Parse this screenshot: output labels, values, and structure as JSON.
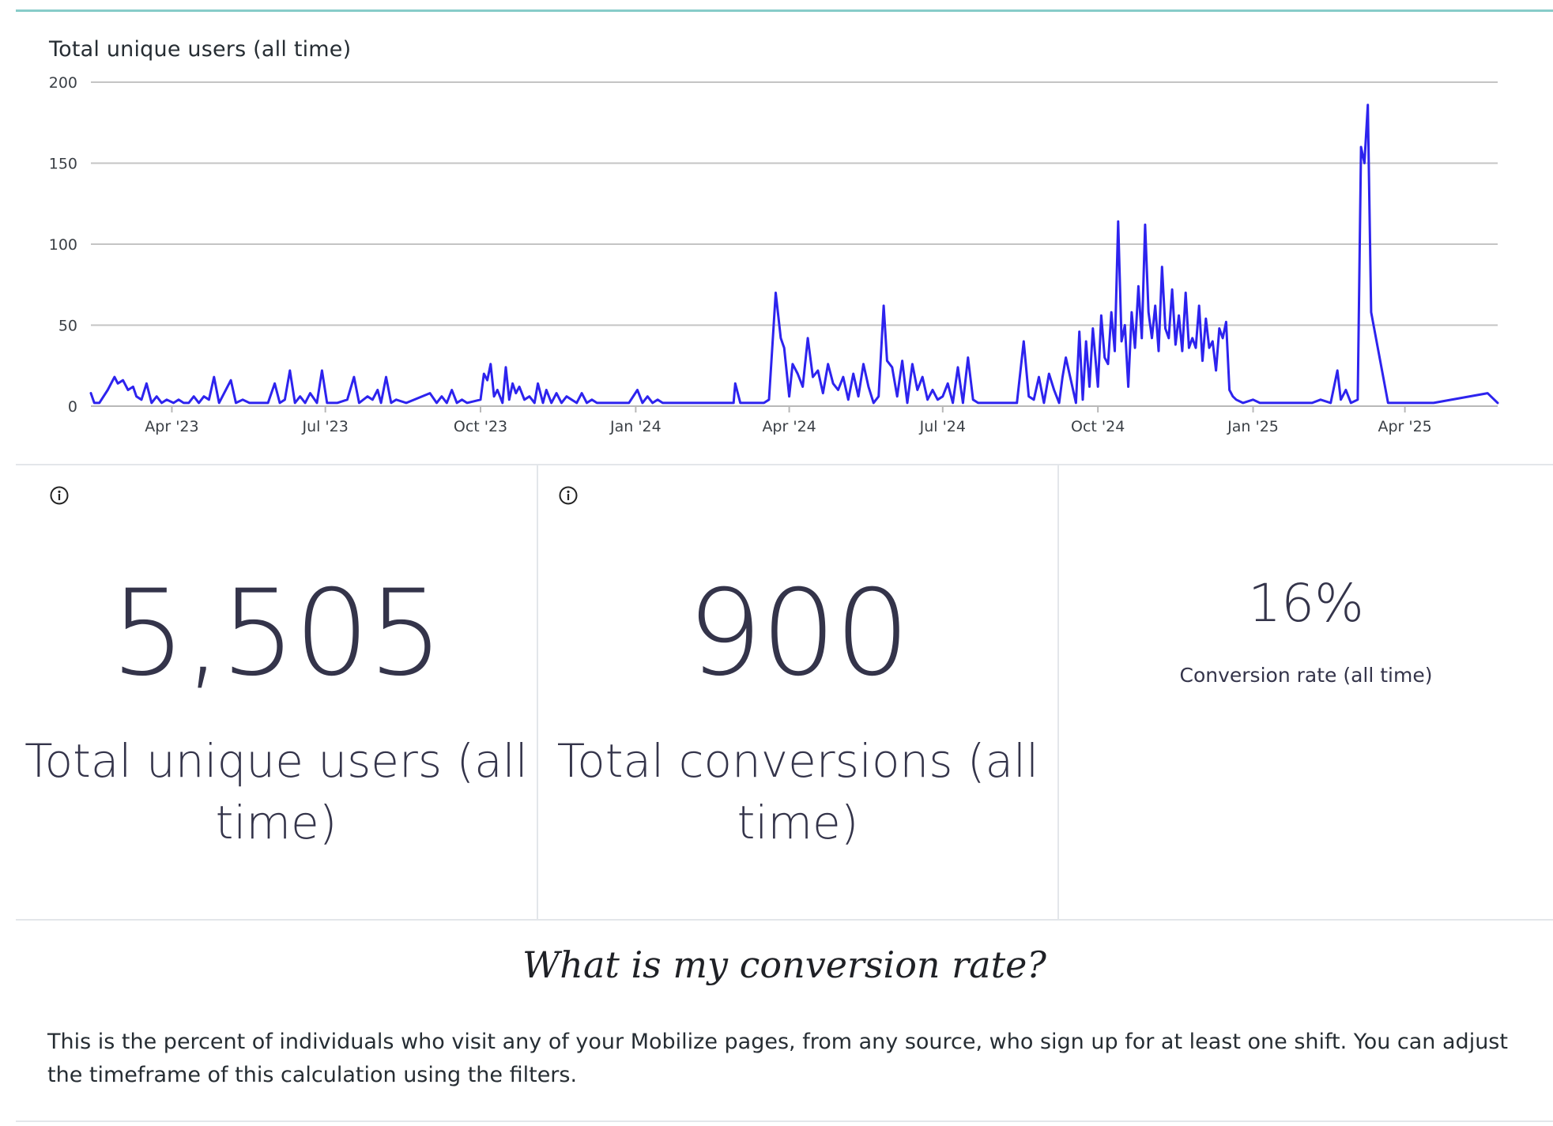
{
  "chart": {
    "title": "Total unique users (all time)"
  },
  "chart_data": {
    "type": "line",
    "title": "Total unique users (all time)",
    "xlabel": "",
    "ylabel": "",
    "ylim": [
      0,
      200
    ],
    "y_ticks": [
      0,
      50,
      100,
      150,
      200
    ],
    "x_ticks": [
      "Apr '23",
      "Jul '23",
      "Oct '23",
      "Jan '24",
      "Apr '24",
      "Jul '24",
      "Oct '24",
      "Jan '25",
      "Apr '25"
    ],
    "x_tick_dates": [
      "2023-04-01",
      "2023-07-01",
      "2023-10-01",
      "2024-01-01",
      "2024-04-01",
      "2024-07-01",
      "2024-10-01",
      "2025-01-01",
      "2025-04-01"
    ],
    "x_range": [
      "2023-02-12",
      "2025-05-26"
    ],
    "grid": true,
    "line_color": "#2d23ee",
    "series": [
      {
        "values": [
          [
            "2023-02-12",
            8
          ],
          [
            "2023-02-14",
            2
          ],
          [
            "2023-02-17",
            2
          ],
          [
            "2023-02-22",
            10
          ],
          [
            "2023-02-26",
            18
          ],
          [
            "2023-02-28",
            14
          ],
          [
            "2023-03-03",
            16
          ],
          [
            "2023-03-06",
            10
          ],
          [
            "2023-03-09",
            12
          ],
          [
            "2023-03-11",
            6
          ],
          [
            "2023-03-14",
            4
          ],
          [
            "2023-03-17",
            14
          ],
          [
            "2023-03-20",
            2
          ],
          [
            "2023-03-23",
            6
          ],
          [
            "2023-03-26",
            2
          ],
          [
            "2023-03-29",
            4
          ],
          [
            "2023-04-02",
            2
          ],
          [
            "2023-04-05",
            4
          ],
          [
            "2023-04-08",
            2
          ],
          [
            "2023-04-11",
            2
          ],
          [
            "2023-04-14",
            6
          ],
          [
            "2023-04-17",
            2
          ],
          [
            "2023-04-20",
            6
          ],
          [
            "2023-04-23",
            4
          ],
          [
            "2023-04-26",
            18
          ],
          [
            "2023-04-29",
            2
          ],
          [
            "2023-05-02",
            8
          ],
          [
            "2023-05-06",
            16
          ],
          [
            "2023-05-09",
            2
          ],
          [
            "2023-05-13",
            4
          ],
          [
            "2023-05-17",
            2
          ],
          [
            "2023-05-22",
            2
          ],
          [
            "2023-05-28",
            2
          ],
          [
            "2023-06-01",
            14
          ],
          [
            "2023-06-04",
            2
          ],
          [
            "2023-06-07",
            4
          ],
          [
            "2023-06-10",
            22
          ],
          [
            "2023-06-13",
            2
          ],
          [
            "2023-06-16",
            6
          ],
          [
            "2023-06-19",
            2
          ],
          [
            "2023-06-22",
            8
          ],
          [
            "2023-06-26",
            2
          ],
          [
            "2023-06-29",
            22
          ],
          [
            "2023-07-02",
            2
          ],
          [
            "2023-07-08",
            2
          ],
          [
            "2023-07-14",
            4
          ],
          [
            "2023-07-18",
            18
          ],
          [
            "2023-07-21",
            2
          ],
          [
            "2023-07-26",
            6
          ],
          [
            "2023-07-29",
            4
          ],
          [
            "2023-08-01",
            10
          ],
          [
            "2023-08-03",
            2
          ],
          [
            "2023-08-06",
            18
          ],
          [
            "2023-08-09",
            2
          ],
          [
            "2023-08-12",
            4
          ],
          [
            "2023-08-18",
            2
          ],
          [
            "2023-09-01",
            8
          ],
          [
            "2023-09-05",
            2
          ],
          [
            "2023-09-08",
            6
          ],
          [
            "2023-09-11",
            2
          ],
          [
            "2023-09-14",
            10
          ],
          [
            "2023-09-17",
            2
          ],
          [
            "2023-09-20",
            4
          ],
          [
            "2023-09-23",
            2
          ],
          [
            "2023-10-01",
            4
          ],
          [
            "2023-10-03",
            20
          ],
          [
            "2023-10-05",
            16
          ],
          [
            "2023-10-07",
            26
          ],
          [
            "2023-10-09",
            6
          ],
          [
            "2023-10-11",
            10
          ],
          [
            "2023-10-14",
            2
          ],
          [
            "2023-10-16",
            24
          ],
          [
            "2023-10-18",
            4
          ],
          [
            "2023-10-20",
            14
          ],
          [
            "2023-10-22",
            8
          ],
          [
            "2023-10-24",
            12
          ],
          [
            "2023-10-27",
            4
          ],
          [
            "2023-10-30",
            6
          ],
          [
            "2023-11-02",
            2
          ],
          [
            "2023-11-04",
            14
          ],
          [
            "2023-11-07",
            2
          ],
          [
            "2023-11-09",
            10
          ],
          [
            "2023-11-12",
            2
          ],
          [
            "2023-11-15",
            8
          ],
          [
            "2023-11-18",
            2
          ],
          [
            "2023-11-21",
            6
          ],
          [
            "2023-11-24",
            4
          ],
          [
            "2023-11-27",
            2
          ],
          [
            "2023-11-30",
            8
          ],
          [
            "2023-12-03",
            2
          ],
          [
            "2023-12-06",
            4
          ],
          [
            "2023-12-09",
            2
          ],
          [
            "2023-12-13",
            2
          ],
          [
            "2023-12-20",
            2
          ],
          [
            "2023-12-28",
            2
          ],
          [
            "2024-01-02",
            10
          ],
          [
            "2024-01-05",
            2
          ],
          [
            "2024-01-08",
            6
          ],
          [
            "2024-01-11",
            2
          ],
          [
            "2024-01-14",
            4
          ],
          [
            "2024-01-17",
            2
          ],
          [
            "2024-01-20",
            2
          ],
          [
            "2024-01-26",
            2
          ],
          [
            "2024-02-01",
            2
          ],
          [
            "2024-02-05",
            2
          ],
          [
            "2024-02-11",
            2
          ],
          [
            "2024-02-15",
            2
          ],
          [
            "2024-02-21",
            2
          ],
          [
            "2024-02-24",
            2
          ],
          [
            "2024-02-28",
            2
          ],
          [
            "2024-02-29",
            14
          ],
          [
            "2024-03-03",
            2
          ],
          [
            "2024-03-07",
            2
          ],
          [
            "2024-03-10",
            2
          ],
          [
            "2024-03-14",
            2
          ],
          [
            "2024-03-17",
            2
          ],
          [
            "2024-03-20",
            4
          ],
          [
            "2024-03-24",
            70
          ],
          [
            "2024-03-27",
            42
          ],
          [
            "2024-03-29",
            36
          ],
          [
            "2024-04-01",
            6
          ],
          [
            "2024-04-03",
            26
          ],
          [
            "2024-04-06",
            20
          ],
          [
            "2024-04-09",
            12
          ],
          [
            "2024-04-12",
            42
          ],
          [
            "2024-04-15",
            18
          ],
          [
            "2024-04-18",
            22
          ],
          [
            "2024-04-21",
            8
          ],
          [
            "2024-04-24",
            26
          ],
          [
            "2024-04-27",
            14
          ],
          [
            "2024-04-30",
            10
          ],
          [
            "2024-05-03",
            18
          ],
          [
            "2024-05-06",
            4
          ],
          [
            "2024-05-09",
            20
          ],
          [
            "2024-05-12",
            6
          ],
          [
            "2024-05-15",
            26
          ],
          [
            "2024-05-18",
            12
          ],
          [
            "2024-05-21",
            2
          ],
          [
            "2024-05-24",
            6
          ],
          [
            "2024-05-27",
            62
          ],
          [
            "2024-05-29",
            28
          ],
          [
            "2024-06-01",
            24
          ],
          [
            "2024-06-04",
            6
          ],
          [
            "2024-06-07",
            28
          ],
          [
            "2024-06-10",
            2
          ],
          [
            "2024-06-13",
            26
          ],
          [
            "2024-06-16",
            10
          ],
          [
            "2024-06-19",
            18
          ],
          [
            "2024-06-22",
            4
          ],
          [
            "2024-06-25",
            10
          ],
          [
            "2024-06-28",
            4
          ],
          [
            "2024-07-01",
            6
          ],
          [
            "2024-07-04",
            14
          ],
          [
            "2024-07-07",
            2
          ],
          [
            "2024-07-10",
            24
          ],
          [
            "2024-07-13",
            2
          ],
          [
            "2024-07-16",
            30
          ],
          [
            "2024-07-19",
            4
          ],
          [
            "2024-07-22",
            2
          ],
          [
            "2024-07-28",
            2
          ],
          [
            "2024-08-02",
            2
          ],
          [
            "2024-08-08",
            2
          ],
          [
            "2024-08-14",
            2
          ],
          [
            "2024-08-18",
            40
          ],
          [
            "2024-08-21",
            6
          ],
          [
            "2024-08-24",
            4
          ],
          [
            "2024-08-27",
            18
          ],
          [
            "2024-08-30",
            2
          ],
          [
            "2024-09-02",
            20
          ],
          [
            "2024-09-05",
            10
          ],
          [
            "2024-09-08",
            2
          ],
          [
            "2024-09-10",
            18
          ],
          [
            "2024-09-12",
            30
          ],
          [
            "2024-09-15",
            16
          ],
          [
            "2024-09-18",
            2
          ],
          [
            "2024-09-20",
            46
          ],
          [
            "2024-09-22",
            4
          ],
          [
            "2024-09-24",
            40
          ],
          [
            "2024-09-26",
            12
          ],
          [
            "2024-09-28",
            48
          ],
          [
            "2024-10-01",
            12
          ],
          [
            "2024-10-03",
            56
          ],
          [
            "2024-10-05",
            30
          ],
          [
            "2024-10-07",
            26
          ],
          [
            "2024-10-09",
            58
          ],
          [
            "2024-10-11",
            34
          ],
          [
            "2024-10-13",
            114
          ],
          [
            "2024-10-15",
            40
          ],
          [
            "2024-10-17",
            50
          ],
          [
            "2024-10-19",
            12
          ],
          [
            "2024-10-21",
            58
          ],
          [
            "2024-10-23",
            36
          ],
          [
            "2024-10-25",
            74
          ],
          [
            "2024-10-27",
            42
          ],
          [
            "2024-10-29",
            112
          ],
          [
            "2024-10-31",
            58
          ],
          [
            "2024-11-02",
            42
          ],
          [
            "2024-11-04",
            62
          ],
          [
            "2024-11-06",
            34
          ],
          [
            "2024-11-08",
            86
          ],
          [
            "2024-11-10",
            48
          ],
          [
            "2024-11-12",
            42
          ],
          [
            "2024-11-14",
            72
          ],
          [
            "2024-11-16",
            38
          ],
          [
            "2024-11-18",
            56
          ],
          [
            "2024-11-20",
            34
          ],
          [
            "2024-11-22",
            70
          ],
          [
            "2024-11-24",
            36
          ],
          [
            "2024-11-26",
            42
          ],
          [
            "2024-11-28",
            36
          ],
          [
            "2024-11-30",
            62
          ],
          [
            "2024-12-02",
            28
          ],
          [
            "2024-12-04",
            54
          ],
          [
            "2024-12-06",
            36
          ],
          [
            "2024-12-08",
            40
          ],
          [
            "2024-12-10",
            22
          ],
          [
            "2024-12-12",
            48
          ],
          [
            "2024-12-14",
            42
          ],
          [
            "2024-12-16",
            52
          ],
          [
            "2024-12-18",
            10
          ],
          [
            "2024-12-20",
            6
          ],
          [
            "2024-12-22",
            4
          ],
          [
            "2024-12-26",
            2
          ],
          [
            "2025-01-01",
            4
          ],
          [
            "2025-01-05",
            2
          ],
          [
            "2025-01-12",
            2
          ],
          [
            "2025-01-20",
            2
          ],
          [
            "2025-01-28",
            2
          ],
          [
            "2025-02-05",
            2
          ],
          [
            "2025-02-10",
            4
          ],
          [
            "2025-02-16",
            2
          ],
          [
            "2025-02-20",
            22
          ],
          [
            "2025-02-22",
            4
          ],
          [
            "2025-02-25",
            10
          ],
          [
            "2025-02-28",
            2
          ],
          [
            "2025-03-04",
            4
          ],
          [
            "2025-03-06",
            160
          ],
          [
            "2025-03-08",
            150
          ],
          [
            "2025-03-10",
            186
          ],
          [
            "2025-03-12",
            58
          ],
          [
            "2025-03-22",
            2
          ],
          [
            "2025-04-10",
            2
          ],
          [
            "2025-04-18",
            2
          ],
          [
            "2025-05-20",
            8
          ],
          [
            "2025-05-26",
            2
          ]
        ]
      }
    ]
  },
  "kpis": [
    {
      "value": "5,505",
      "label": "Total unique users (all time)"
    },
    {
      "value": "900",
      "label": "Total conversions (all time)"
    },
    {
      "value": "16%",
      "label": "Conversion rate (all time)"
    }
  ],
  "text_tile": {
    "heading": "What is my conversion rate?",
    "body": "This is the percent of individuals who visit any of your Mobilize pages, from any source, who sign up for at least one shift. You can adjust the timeframe of this calculation using the filters."
  },
  "icons": {
    "info": "info-circle-icon"
  },
  "colors": {
    "accent_rule": "#87ccc9",
    "series_line": "#2d23ee",
    "kpi_text": "#34344a"
  }
}
